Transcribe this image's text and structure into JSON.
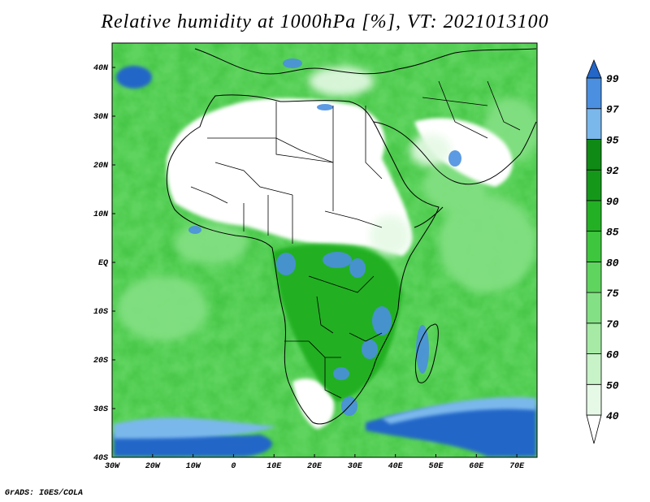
{
  "title": "Relative humidity at 1000hPa [%], VT: 2021013100",
  "footer": "GrADS: IGES/COLA",
  "map": {
    "projection": "latlon",
    "lon_range": [
      -30,
      75
    ],
    "lat_range": [
      -40,
      45
    ],
    "lon_ticks": [
      -30,
      -20,
      -10,
      0,
      10,
      20,
      30,
      40,
      50,
      60,
      70
    ],
    "lat_ticks": [
      -40,
      -30,
      -20,
      -10,
      0,
      10,
      20,
      30,
      40
    ],
    "lon_labels": [
      "30W",
      "20W",
      "10W",
      "0",
      "10E",
      "20E",
      "30E",
      "40E",
      "50E",
      "60E",
      "70E"
    ],
    "lat_labels": [
      "40S",
      "30S",
      "20S",
      "10S",
      "EQ",
      "10N",
      "20N",
      "30N",
      "40N"
    ]
  },
  "colorbar": {
    "levels": [
      40,
      50,
      60,
      70,
      75,
      80,
      85,
      90,
      92,
      95,
      97,
      99
    ],
    "level_labels": [
      "40",
      "50",
      "60",
      "70",
      "75",
      "80",
      "85",
      "90",
      "92",
      "95",
      "97",
      "99"
    ],
    "colors": [
      "#ffffff",
      "#e6f9e6",
      "#c8f2c8",
      "#a6eaa6",
      "#84e084",
      "#5fd45f",
      "#3fc63f",
      "#24b024",
      "#15981a",
      "#0f8a14",
      "#7ab8ec",
      "#4a8fe0",
      "#2466c8"
    ]
  }
}
